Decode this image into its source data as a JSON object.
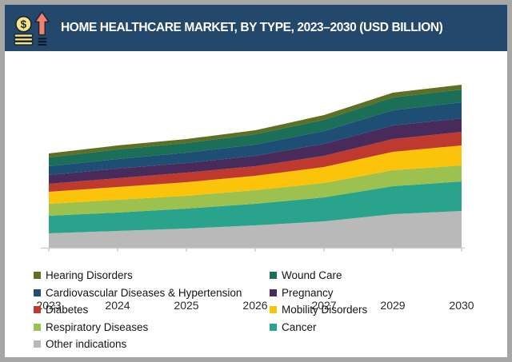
{
  "header": {
    "title": "HOME HEALTHCARE MARKET, BY TYPE, 2023–2030 (USD BILLION)",
    "icon": "coins-growth-arrow-icon"
  },
  "chart_data": {
    "type": "area",
    "stacked": true,
    "title": "HOME HEALTHCARE MARKET, BY TYPE, 2023–2030 (USD BILLION)",
    "x_labels": [
      "2023",
      "2024",
      "2025",
      "2026",
      "2027",
      "2029",
      "2030"
    ],
    "y_axis_visible": false,
    "value_note": "y-axis unlabeled in source; values are relative estimates of band thickness (USD billion scale implied by title)",
    "legend_position": "bottom",
    "grid": false,
    "series_bottom_to_top": [
      {
        "name": "Other indications",
        "color": "#b9b9b9",
        "values": [
          18,
          21,
          24,
          28,
          33,
          42,
          46
        ]
      },
      {
        "name": "Cancer",
        "color": "#2aa38c",
        "values": [
          22,
          23,
          25,
          27,
          30,
          35,
          37
        ]
      },
      {
        "name": "Respiratory Diseases",
        "color": "#9cc14e",
        "values": [
          15,
          16,
          16,
          17,
          18,
          20,
          20
        ]
      },
      {
        "name": "Mobility Disorders",
        "color": "#fcc30b",
        "values": [
          15,
          16,
          17,
          18,
          20,
          23,
          25
        ]
      },
      {
        "name": "Diabetes",
        "color": "#be3a2e",
        "values": [
          10,
          11,
          12,
          12,
          14,
          16,
          17
        ]
      },
      {
        "name": "Pregnancy",
        "color": "#482a5b",
        "values": [
          11,
          12,
          12,
          13,
          15,
          17,
          17
        ]
      },
      {
        "name": "Cardiovascular Diseases & Hypertension",
        "color": "#1f4e74",
        "values": [
          11,
          12,
          13,
          14,
          16,
          19,
          20
        ]
      },
      {
        "name": "Wound Care",
        "color": "#1b6e57",
        "values": [
          11,
          12,
          12,
          13,
          14,
          16,
          16
        ]
      },
      {
        "name": "Hearing Disorders",
        "color": "#5e7023",
        "values": [
          5,
          5,
          5,
          5,
          6,
          6,
          6
        ]
      }
    ]
  },
  "legend": {
    "columns": [
      [
        {
          "label": "Hearing Disorders",
          "color": "#5e7023"
        },
        {
          "label": "Cardiovascular Diseases & Hypertension",
          "color": "#1f4e74"
        },
        {
          "label": "Diabetes",
          "color": "#be3a2e"
        },
        {
          "label": "Respiratory Diseases",
          "color": "#9cc14e"
        },
        {
          "label": "Other indications",
          "color": "#b9b9b9"
        }
      ],
      [
        {
          "label": "Wound Care",
          "color": "#1b6e57"
        },
        {
          "label": "Pregnancy",
          "color": "#482a5b"
        },
        {
          "label": "Mobility Disorders",
          "color": "#fcc30b"
        },
        {
          "label": "Cancer",
          "color": "#2aa38c"
        }
      ]
    ]
  },
  "colors": {
    "header_bg": "#24486b",
    "frame_border": "#a6a6a6",
    "axis_line": "#cfcfcf",
    "tick_text": "#2b2b2b",
    "coin_fill": "#f8e487",
    "arrow_fill": "#ee8370",
    "icon_stroke": "#1d2733"
  }
}
